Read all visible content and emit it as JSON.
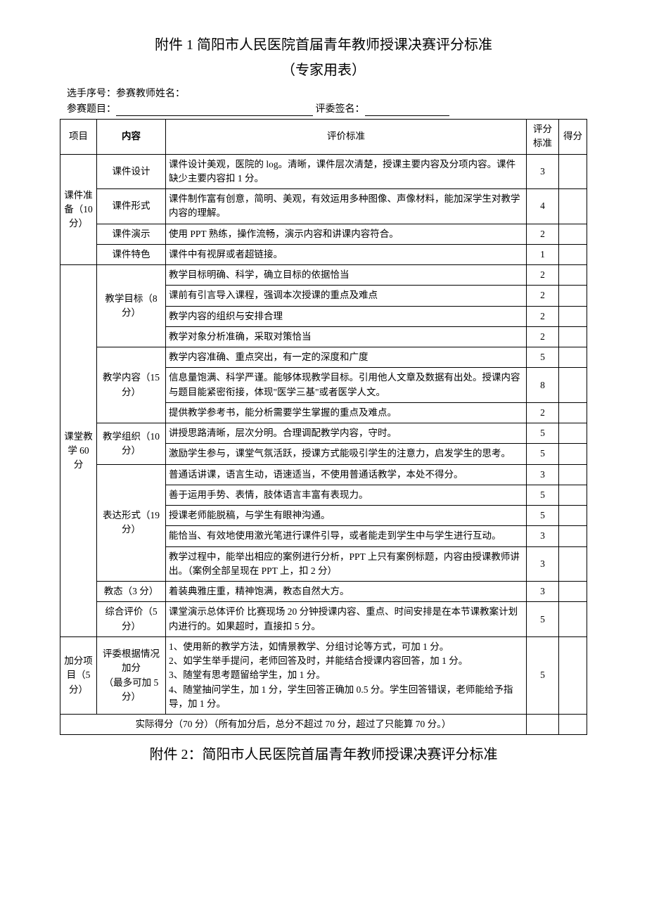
{
  "title": "附件 1 简阳市人民医院首届青年教师授课决赛评分标准",
  "subtitle": "（专家用表）",
  "meta": {
    "line1": "选手序号：参赛教师姓名：",
    "line2_label": "参赛题目：",
    "line2_sig_label": "评委签名："
  },
  "header": {
    "project": "项目",
    "content": "内容",
    "criteria": "评价标准",
    "score_std": "评分标准",
    "score": "得分"
  },
  "sections": [
    {
      "project": "课件准备（10分）",
      "rows": [
        {
          "content": "课件设计",
          "criteria": "课件设计美观，医院的 log。清晰，课件层次清楚，授课主要内容及分项内容。课件缺少主要内容扣 1 分。",
          "std": "3"
        },
        {
          "content": "课件形式",
          "criteria": "课件制作富有创意，简明、美观，有效运用多种图像、声像材料，能加深学生对教学内容的理解。",
          "std": "4"
        },
        {
          "content": "课件演示",
          "criteria": "使用 PPT 熟练，操作流畅，演示内容和讲课内容符合。",
          "std": "2"
        },
        {
          "content": "课件特色",
          "criteria": "课件中有视屏或者超链接。",
          "std": "1"
        }
      ]
    },
    {
      "project": "课堂教学 60分",
      "groups": [
        {
          "content": "教学目标（8分）",
          "rows": [
            {
              "criteria": "教学目标明确、科学，确立目标的依据恰当",
              "std": "2"
            },
            {
              "criteria": "课前有引言导入课程，强调本次授课的重点及难点",
              "std": "2"
            },
            {
              "criteria": "教学内容的组织与安排合理",
              "std": "2"
            },
            {
              "criteria": "教学对象分析准确，采取对策恰当",
              "std": "2"
            }
          ]
        },
        {
          "content": "教学内容（15分）",
          "rows": [
            {
              "criteria": "教学内容准确、重点突出，有一定的深度和广度",
              "std": "5"
            },
            {
              "criteria": "信息量饱满、科学严谨。能够体现教学目标。引用他人文章及数据有出处。授课内容与题目能紧密衔接，体现\"医学三基\"或者医学人文。",
              "std": "8"
            },
            {
              "criteria": "提供教学参考书，能分析需要学生掌握的重点及难点。",
              "std": "2"
            }
          ]
        },
        {
          "content": "教学组织（10分）",
          "rows": [
            {
              "criteria": "讲授思路清晰，层次分明。合理调配教学内容，守时。",
              "std": "5"
            },
            {
              "criteria": "激励学生参与，课堂气氛活跃，授课方式能吸引学生的注意力，启发学生的思考。",
              "std": "5"
            }
          ]
        },
        {
          "content": "表达形式（19分）",
          "rows": [
            {
              "criteria": "普通话讲课，语言生动，语速适当，不使用普通话教学，本处不得分。",
              "std": "3"
            },
            {
              "criteria": "善于运用手势、表情，肢体语言丰富有表现力。",
              "std": "5"
            },
            {
              "criteria": "授课老师能脱稿，与学生有眼神沟通。",
              "std": "5"
            },
            {
              "criteria": "能恰当、有效地使用激光笔进行课件引导，或者能走到学生中与学生进行互动。",
              "std": "3"
            },
            {
              "criteria": "教学过程中，能举出相应的案例进行分析，PPT 上只有案例标题，内容由授课教师讲出。（案例全部呈现在 PPT 上，扣 2 分）",
              "std": "3"
            }
          ]
        },
        {
          "content": "教态（3 分）",
          "rows": [
            {
              "criteria": "着装典雅庄重，精神饱满，教态自然大方。",
              "std": "3"
            }
          ]
        },
        {
          "content": "综合评价（5分）",
          "rows": [
            {
              "criteria": "课堂演示总体评价 比赛现场 20 分钟授课内容、重点、时间安排是在本节课教案计划内进行的。如果超时，直接扣 5 分。",
              "std": "5"
            }
          ]
        }
      ]
    },
    {
      "project": "加分项目（5分）",
      "rows": [
        {
          "content": "评委根据情况加分\n（最多可加 5分）",
          "criteria": "1、使用新的教学方法，如情景教学、分组讨论等方式，可加 1 分。\n2、如学生举手提问，老师回答及时，并能结合授课内容回答，加 1 分。\n3、随堂有思考题留给学生，加 1 分。\n4、随堂抽问学生，加 1 分，学生回答正确加 0.5 分。学生回答错误，老师能给予指导，加 1 分。",
          "std": "5"
        }
      ]
    }
  ],
  "footer_row": "实际得分（70 分）（所有加分后，总分不超过 70 分，超过了只能算 70 分。）",
  "footer_title": "附件 2：简阳市人民医院首届青年教师授课决赛评分标准"
}
